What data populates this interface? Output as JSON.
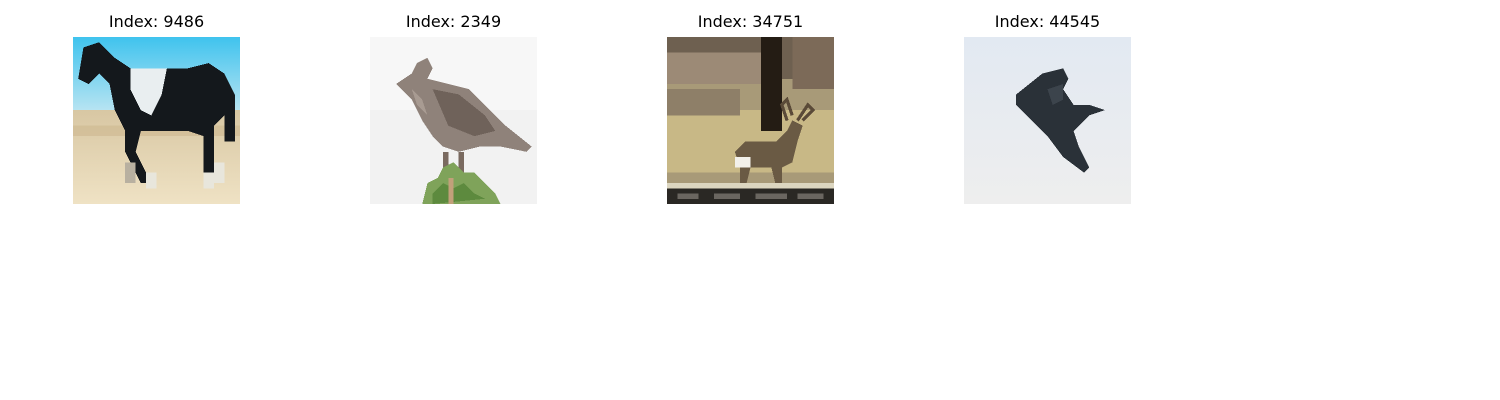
{
  "panels": [
    {
      "title": "Index: 9486",
      "subject": "horse"
    },
    {
      "title": "Index: 2349",
      "subject": "bird"
    },
    {
      "title": "Index: 34751",
      "subject": "deer"
    },
    {
      "title": "Index: 44545",
      "subject": "airplane"
    }
  ]
}
